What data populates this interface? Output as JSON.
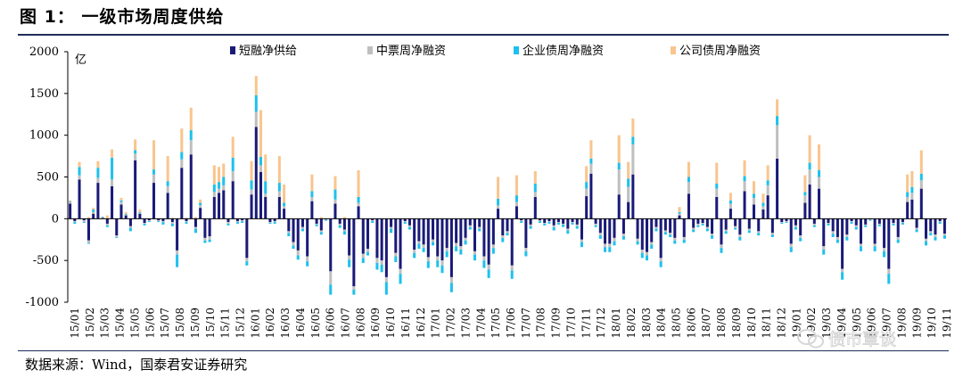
{
  "figure": {
    "title": "图 1： 一级市场周度供给",
    "source": "数据来源：Wind，国泰君安证券研究",
    "watermark": "债市覃谈"
  },
  "chart_data": {
    "type": "bar",
    "stacked": true,
    "ylabel": "亿",
    "ylim": [
      -1000,
      2000
    ],
    "yticks": [
      -1000,
      -500,
      0,
      500,
      1000,
      1500,
      2000
    ],
    "legend_position": "top",
    "x_tick_labels": [
      "15/01",
      "15/02",
      "15/03",
      "15/04",
      "15/05",
      "15/06",
      "15/07",
      "15/08",
      "15/09",
      "15/10",
      "15/11",
      "15/12",
      "16/01",
      "16/02",
      "16/03",
      "16/04",
      "16/05",
      "16/06",
      "16/07",
      "16/08",
      "16/09",
      "16/10",
      "16/11",
      "16/12",
      "17/01",
      "17/02",
      "17/03",
      "17/04",
      "17/05",
      "17/06",
      "17/07",
      "17/08",
      "17/09",
      "17/10",
      "17/11",
      "17/12",
      "18/01",
      "18/02",
      "18/03",
      "18/04",
      "18/05",
      "18/06",
      "18/07",
      "18/08",
      "18/09",
      "18/10",
      "18/11",
      "18/12",
      "19/01",
      "19/02",
      "19/03",
      "19/04",
      "19/05",
      "19/06",
      "19/07",
      "19/08",
      "19/09",
      "19/10",
      "19/11"
    ],
    "series": [
      {
        "name": "短融净供给",
        "color": "#1a1a78",
        "values": [
          180,
          -30,
          470,
          -20,
          -260,
          60,
          430,
          10,
          -60,
          390,
          -200,
          170,
          40,
          -90,
          700,
          60,
          -50,
          -20,
          430,
          -20,
          -30,
          310,
          -40,
          -380,
          610,
          -30,
          770,
          -100,
          130,
          -230,
          -210,
          260,
          310,
          340,
          -40,
          450,
          -30,
          -20,
          -470,
          290,
          1100,
          560,
          260,
          -40,
          -30,
          260,
          120,
          -150,
          -280,
          -380,
          -100,
          -450,
          210,
          -60,
          -140,
          -10,
          -630,
          180,
          -60,
          -130,
          -440,
          -810,
          150,
          -420,
          -360,
          -20,
          -470,
          -500,
          -700,
          -100,
          -410,
          -600,
          -30,
          -80,
          -370,
          -270,
          -310,
          -460,
          -250,
          -450,
          -500,
          -350,
          -700,
          -290,
          -330,
          -230,
          -80,
          -390,
          -100,
          -450,
          -550,
          -310,
          120,
          -200,
          -150,
          -560,
          150,
          -20,
          -350,
          -70,
          260,
          -20,
          -50,
          -30,
          -80,
          -40,
          -60,
          -120,
          -40,
          -70,
          -250,
          270,
          540,
          -60,
          -170,
          -300,
          -300,
          -230,
          290,
          -180,
          200,
          530,
          -240,
          -370,
          -400,
          -280,
          -100,
          -470,
          -140,
          -170,
          -230,
          40,
          -220,
          300,
          -110,
          -60,
          -50,
          -100,
          -180,
          260,
          -310,
          -130,
          120,
          -90,
          -190,
          330,
          -120,
          170,
          -150,
          110,
          280,
          -170,
          720,
          -40,
          -30,
          -300,
          -80,
          -200,
          190,
          410,
          -60,
          360,
          -330,
          -50,
          -150,
          -220,
          -600,
          -190,
          -30,
          -80,
          -300,
          -70,
          -10,
          -300,
          -60,
          -350,
          -600,
          -50,
          -220,
          -40,
          200,
          230,
          -110,
          360,
          -240,
          -150,
          -190,
          -30,
          -180
        ]
      },
      {
        "name": "中票周净融资",
        "color": "#bfbfbf",
        "values": [
          20,
          -10,
          50,
          -20,
          -30,
          20,
          60,
          10,
          -20,
          80,
          -20,
          30,
          10,
          -20,
          80,
          10,
          -10,
          -10,
          100,
          -10,
          -10,
          80,
          -20,
          -50,
          100,
          -10,
          170,
          -20,
          30,
          -30,
          -40,
          60,
          50,
          60,
          -20,
          120,
          -10,
          -10,
          -40,
          60,
          180,
          80,
          40,
          -10,
          -10,
          70,
          30,
          -20,
          -40,
          -60,
          -20,
          -60,
          50,
          -10,
          -20,
          -5,
          -160,
          50,
          -20,
          -20,
          -50,
          -40,
          40,
          -50,
          -40,
          -10,
          -60,
          -50,
          -60,
          -20,
          -40,
          -60,
          -10,
          -20,
          -40,
          -30,
          -40,
          -50,
          -30,
          -50,
          -60,
          -40,
          -70,
          -40,
          -40,
          -30,
          -20,
          -40,
          -20,
          -50,
          -60,
          -40,
          40,
          -30,
          -20,
          -60,
          50,
          -10,
          -40,
          -20,
          60,
          -10,
          -10,
          -10,
          -20,
          -10,
          -10,
          -20,
          -10,
          -20,
          -30,
          90,
          120,
          -20,
          -30,
          -40,
          -40,
          -40,
          300,
          -30,
          180,
          360,
          -30,
          -40,
          -40,
          -30,
          -20,
          -40,
          -20,
          -20,
          -30,
          20,
          -30,
          140,
          -20,
          -20,
          -10,
          -20,
          -20,
          100,
          -40,
          -20,
          60,
          -20,
          -30,
          120,
          -20,
          80,
          -20,
          40,
          120,
          -20,
          400,
          -10,
          -10,
          -40,
          -20,
          -30,
          90,
          180,
          -20,
          140,
          -40,
          -10,
          -30,
          -30,
          -40,
          -30,
          -10,
          -20,
          -30,
          -10,
          -5,
          -30,
          -10,
          -40,
          -60,
          -10,
          -30,
          -10,
          60,
          80,
          -20,
          100,
          -30,
          -20,
          -30,
          -10,
          -20
        ]
      },
      {
        "name": "企业债周净融资",
        "color": "#1ec1ec",
        "values": [
          10,
          -20,
          100,
          -10,
          -10,
          30,
          120,
          5,
          -20,
          260,
          -10,
          20,
          10,
          -40,
          40,
          10,
          -20,
          -10,
          60,
          -10,
          -30,
          60,
          -30,
          -150,
          90,
          -20,
          120,
          -50,
          30,
          -30,
          -30,
          90,
          80,
          100,
          -20,
          160,
          -20,
          -20,
          -50,
          110,
          200,
          100,
          150,
          -10,
          -20,
          100,
          40,
          -40,
          -40,
          -50,
          -30,
          -60,
          70,
          -20,
          -30,
          -10,
          -120,
          120,
          -30,
          -40,
          -90,
          -60,
          70,
          -60,
          -40,
          -20,
          -80,
          -90,
          -150,
          -50,
          -70,
          -120,
          -20,
          -30,
          -60,
          -60,
          -50,
          -80,
          -40,
          -80,
          -90,
          -70,
          -110,
          -60,
          -60,
          -50,
          -30,
          -70,
          -30,
          -90,
          -100,
          -70,
          80,
          -50,
          -30,
          -100,
          80,
          -20,
          -60,
          -30,
          100,
          -20,
          -20,
          -20,
          -40,
          -20,
          -30,
          -40,
          -20,
          -30,
          -60,
          80,
          60,
          -20,
          -40,
          -60,
          -60,
          -50,
          80,
          -40,
          100,
          90,
          -40,
          -60,
          -60,
          -50,
          -30,
          -70,
          -30,
          -30,
          -40,
          20,
          -40,
          60,
          -30,
          -20,
          -20,
          -30,
          -40,
          60,
          -60,
          -30,
          40,
          -20,
          -40,
          60,
          -30,
          50,
          -30,
          40,
          60,
          -30,
          110,
          -10,
          -10,
          -60,
          -30,
          -40,
          40,
          80,
          -20,
          80,
          -60,
          -20,
          -40,
          -40,
          -90,
          -40,
          -20,
          -30,
          -60,
          -20,
          -10,
          -60,
          -20,
          -70,
          -120,
          -20,
          -40,
          -20,
          60,
          70,
          -30,
          80,
          -50,
          -30,
          -40,
          -20,
          -40
        ]
      },
      {
        "name": "公司债周净融资",
        "color": "#f9c58e",
        "values": [
          10,
          0,
          60,
          0,
          20,
          20,
          80,
          0,
          40,
          100,
          0,
          30,
          20,
          0,
          130,
          30,
          0,
          0,
          350,
          0,
          0,
          300,
          10,
          0,
          280,
          10,
          270,
          20,
          40,
          0,
          0,
          230,
          180,
          160,
          0,
          250,
          0,
          0,
          0,
          230,
          230,
          560,
          320,
          0,
          0,
          320,
          220,
          0,
          0,
          0,
          0,
          0,
          200,
          0,
          20,
          0,
          0,
          160,
          0,
          20,
          0,
          0,
          320,
          0,
          0,
          0,
          0,
          0,
          0,
          0,
          0,
          0,
          0,
          0,
          0,
          0,
          0,
          0,
          0,
          0,
          0,
          0,
          0,
          0,
          0,
          0,
          0,
          0,
          0,
          0,
          0,
          0,
          260,
          0,
          0,
          0,
          240,
          0,
          0,
          0,
          150,
          0,
          0,
          0,
          0,
          0,
          0,
          0,
          0,
          0,
          0,
          190,
          220,
          0,
          0,
          0,
          0,
          0,
          330,
          0,
          200,
          220,
          0,
          0,
          0,
          0,
          0,
          0,
          0,
          0,
          0,
          60,
          0,
          180,
          0,
          0,
          0,
          0,
          0,
          250,
          0,
          0,
          90,
          0,
          0,
          190,
          0,
          150,
          0,
          110,
          180,
          0,
          200,
          0,
          0,
          0,
          0,
          0,
          200,
          330,
          0,
          310,
          0,
          0,
          0,
          0,
          0,
          0,
          0,
          0,
          0,
          0,
          0,
          0,
          0,
          0,
          0,
          0,
          0,
          0,
          210,
          190,
          0,
          280,
          0,
          0,
          0,
          0,
          0
        ]
      }
    ]
  }
}
